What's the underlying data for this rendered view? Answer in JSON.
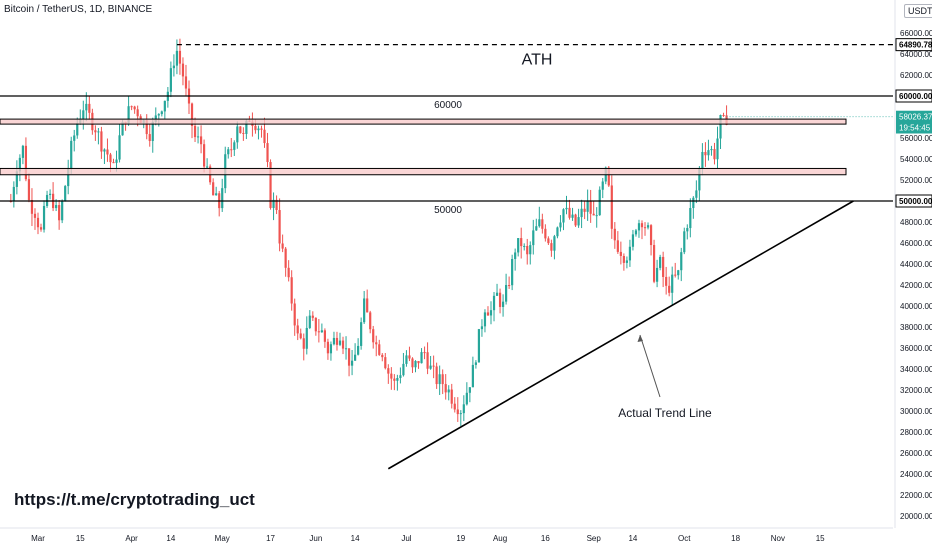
{
  "header": {
    "title": "Bitcoin / TetherUS, 1D, BINANCE",
    "currency": "USDT"
  },
  "colors": {
    "up": "#26a69a",
    "down": "#ef5350",
    "level_line": "#000000",
    "zone_fill": "#f8c8c8",
    "ath_line": "#000000",
    "price_tag_bg": "#26a69a",
    "axis_text": "#131722",
    "background": "#ffffff"
  },
  "chart_data": {
    "type": "candlestick",
    "title": "Bitcoin / TetherUS, 1D, BINANCE",
    "ylim": [
      19000,
      67000
    ],
    "y_ticks": [
      20000,
      22000,
      24000,
      26000,
      28000,
      30000,
      32000,
      34000,
      36000,
      38000,
      40000,
      42000,
      44000,
      46000,
      48000,
      50000,
      52000,
      54000,
      56000,
      58000,
      60000,
      62000,
      64000,
      66000
    ],
    "x_ticks": [
      {
        "label": "Mar",
        "day": 0
      },
      {
        "label": "15",
        "day": 14
      },
      {
        "label": "Apr",
        "day": 31
      },
      {
        "label": "14",
        "day": 44
      },
      {
        "label": "May",
        "day": 61
      },
      {
        "label": "17",
        "day": 77
      },
      {
        "label": "Jun",
        "day": 92
      },
      {
        "label": "14",
        "day": 105
      },
      {
        "label": "Jul",
        "day": 122
      },
      {
        "label": "19",
        "day": 140
      },
      {
        "label": "Aug",
        "day": 153
      },
      {
        "label": "16",
        "day": 168
      },
      {
        "label": "Sep",
        "day": 184
      },
      {
        "label": "14",
        "day": 197
      },
      {
        "label": "Oct",
        "day": 214
      },
      {
        "label": "18",
        "day": 231
      },
      {
        "label": "Nov",
        "day": 245
      },
      {
        "label": "15",
        "day": 259
      }
    ],
    "close_path": [
      [
        -9,
        50000
      ],
      [
        -7,
        53500
      ],
      [
        -5,
        55000
      ],
      [
        -3,
        50000
      ],
      [
        -1,
        49000
      ],
      [
        1,
        47000
      ],
      [
        3,
        50500
      ],
      [
        5,
        50000
      ],
      [
        7,
        48000
      ],
      [
        9,
        51500
      ],
      [
        11,
        55000
      ],
      [
        13,
        57500
      ],
      [
        15,
        59000
      ],
      [
        17,
        58000
      ],
      [
        19,
        57000
      ],
      [
        21,
        55500
      ],
      [
        23,
        54500
      ],
      [
        25,
        53000
      ],
      [
        27,
        56000
      ],
      [
        29,
        58000
      ],
      [
        31,
        59000
      ],
      [
        33,
        58500
      ],
      [
        35,
        57500
      ],
      [
        37,
        56500
      ],
      [
        39,
        57800
      ],
      [
        41,
        59200
      ],
      [
        43,
        60500
      ],
      [
        45,
        63500
      ],
      [
        46,
        64300
      ],
      [
        48,
        62000
      ],
      [
        50,
        58500
      ],
      [
        52,
        56000
      ],
      [
        54,
        55500
      ],
      [
        56,
        52500
      ],
      [
        58,
        50500
      ],
      [
        60,
        49500
      ],
      [
        62,
        53800
      ],
      [
        64,
        55000
      ],
      [
        66,
        57500
      ],
      [
        68,
        56000
      ],
      [
        70,
        58000
      ],
      [
        72,
        57500
      ],
      [
        74,
        56800
      ],
      [
        76,
        53000
      ],
      [
        77,
        50000
      ],
      [
        79,
        49500
      ],
      [
        80,
        46500
      ],
      [
        82,
        43500
      ],
      [
        84,
        40500
      ],
      [
        86,
        37000
      ],
      [
        88,
        36500
      ],
      [
        90,
        38500
      ],
      [
        92,
        38000
      ],
      [
        94,
        37500
      ],
      [
        96,
        35800
      ],
      [
        98,
        36700
      ],
      [
        100,
        37500
      ],
      [
        102,
        35700
      ],
      [
        104,
        34000
      ],
      [
        106,
        36500
      ],
      [
        108,
        40000
      ],
      [
        110,
        38200
      ],
      [
        112,
        36300
      ],
      [
        114,
        35700
      ],
      [
        116,
        33700
      ],
      [
        118,
        32600
      ],
      [
        120,
        33800
      ],
      [
        122,
        35300
      ],
      [
        124,
        33800
      ],
      [
        126,
        34900
      ],
      [
        128,
        35600
      ],
      [
        130,
        34000
      ],
      [
        132,
        33000
      ],
      [
        134,
        32700
      ],
      [
        136,
        31900
      ],
      [
        138,
        30800
      ],
      [
        140,
        30200
      ],
      [
        142,
        31900
      ],
      [
        144,
        33800
      ],
      [
        146,
        37000
      ],
      [
        148,
        40000
      ],
      [
        150,
        39500
      ],
      [
        152,
        41000
      ],
      [
        154,
        40000
      ],
      [
        156,
        42500
      ],
      [
        158,
        45500
      ],
      [
        160,
        46000
      ],
      [
        162,
        44600
      ],
      [
        164,
        46800
      ],
      [
        166,
        47800
      ],
      [
        168,
        47000
      ],
      [
        170,
        45800
      ],
      [
        172,
        48000
      ],
      [
        174,
        49200
      ],
      [
        176,
        48400
      ],
      [
        178,
        47700
      ],
      [
        180,
        48800
      ],
      [
        182,
        49600
      ],
      [
        184,
        48300
      ],
      [
        186,
        50300
      ],
      [
        188,
        52500
      ],
      [
        189,
        51000
      ],
      [
        190,
        46800
      ],
      [
        192,
        45800
      ],
      [
        194,
        44900
      ],
      [
        196,
        45000
      ],
      [
        198,
        47800
      ],
      [
        200,
        48300
      ],
      [
        202,
        47100
      ],
      [
        204,
        43000
      ],
      [
        206,
        44000
      ],
      [
        208,
        41500
      ],
      [
        210,
        42300
      ],
      [
        212,
        43000
      ],
      [
        214,
        47000
      ],
      [
        216,
        49000
      ],
      [
        218,
        51000
      ],
      [
        220,
        55000
      ],
      [
        222,
        55000
      ],
      [
        224,
        54500
      ],
      [
        226,
        57500
      ],
      [
        227,
        57400
      ],
      [
        228,
        58026
      ]
    ],
    "levels": [
      {
        "name": "ATH",
        "price": 64890.78,
        "style": "dashed",
        "label_text": "ATH"
      },
      {
        "name": "level-60000",
        "price": 60000,
        "style": "solid",
        "label_text": "60000"
      },
      {
        "name": "level-50000",
        "price": 50000,
        "style": "solid",
        "label_text": "50000"
      }
    ],
    "zones": [
      {
        "name": "resistance-zone-upper",
        "top": 57800,
        "bottom": 57400
      },
      {
        "name": "resistance-zone-lower",
        "top": 53100,
        "bottom": 52500
      }
    ],
    "trend_line": {
      "label": "Actual Trend Line",
      "start": {
        "day": 116,
        "price": 24500
      },
      "end": {
        "day": 270,
        "price": 50000
      }
    },
    "price_tags": [
      {
        "name": "ath-price-tag",
        "text": "64890.78",
        "price": 64890.78,
        "style": "outline"
      },
      {
        "name": "level-60000-price-tag",
        "text": "60000.00",
        "price": 60000,
        "style": "outline"
      },
      {
        "name": "current-price-tag",
        "text": "58026.37",
        "price": 58026.37,
        "style": "green"
      },
      {
        "name": "countdown-tag",
        "text": "19:54:45",
        "price": 57000,
        "style": "green"
      },
      {
        "name": "level-50000-price-tag",
        "text": "50000.00",
        "price": 50000,
        "style": "outline"
      }
    ]
  },
  "annotations": {
    "ath_label": "ATH",
    "level_60000_label": "60000",
    "level_50000_label": "50000",
    "trend_label": "Actual Trend Line",
    "link_text": "https://t.me/cryptotrading_uct"
  }
}
